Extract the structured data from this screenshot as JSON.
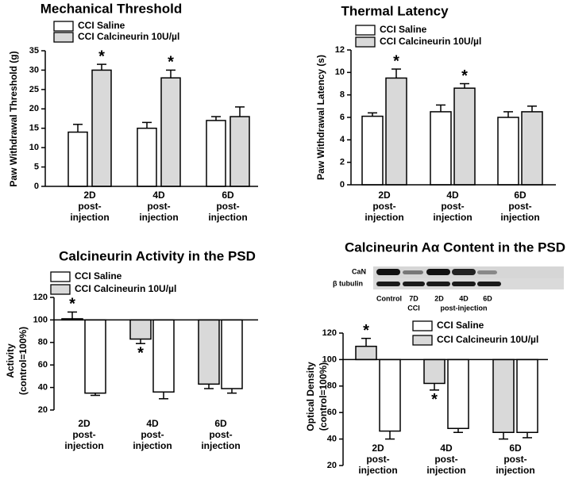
{
  "chart_data": [
    {
      "type": "bar",
      "title": "Mechanical Threshold",
      "y_label": [
        "Paw Withdrawal Threshold (g)"
      ],
      "categories": [
        [
          "2D",
          "post-",
          "injection"
        ],
        [
          "4D",
          "post-",
          "injection"
        ],
        [
          "6D",
          "post-",
          "injection"
        ]
      ],
      "series": [
        {
          "name": "CCI Saline",
          "color": "#ffffff",
          "values": [
            14,
            15,
            17
          ],
          "errors": [
            2,
            1.5,
            1
          ],
          "marked": [
            false,
            false,
            false
          ]
        },
        {
          "name": "CCI Calcineurin 10U/µl",
          "color": "#d9d9d9",
          "values": [
            30,
            28,
            18
          ],
          "errors": [
            1.5,
            2,
            2.5
          ],
          "marked": [
            true,
            true,
            false
          ]
        }
      ],
      "annotation": "*",
      "ylim": [
        0,
        35
      ],
      "yticks": [
        0,
        5,
        10,
        15,
        20,
        25,
        30,
        35
      ],
      "grid": false
    },
    {
      "type": "bar",
      "title": "Thermal Latency",
      "y_label": [
        "Paw Withdrawal Latency (s)"
      ],
      "categories": [
        [
          "2D",
          "post-",
          "injection"
        ],
        [
          "4D",
          "post-",
          "injection"
        ],
        [
          "6D",
          "post-",
          "injection"
        ]
      ],
      "series": [
        {
          "name": "CCI Saline",
          "color": "#ffffff",
          "values": [
            6.1,
            6.5,
            6.0
          ],
          "errors": [
            0.3,
            0.6,
            0.5
          ],
          "marked": [
            false,
            false,
            false
          ]
        },
        {
          "name": "CCI Calcineurin 10U/µl",
          "color": "#d9d9d9",
          "values": [
            9.5,
            8.6,
            6.5
          ],
          "errors": [
            0.8,
            0.4,
            0.5
          ],
          "marked": [
            true,
            true,
            false
          ]
        }
      ],
      "annotation": "*",
      "ylim": [
        0,
        12
      ],
      "yticks": [
        0,
        2,
        4,
        6,
        8,
        10,
        12
      ],
      "grid": false
    },
    {
      "type": "bar",
      "title": "Calcineurin Activity in the PSD",
      "y_label": [
        "Activity",
        "(control=100%)"
      ],
      "categories": [
        [
          "2D",
          "post-",
          "injection"
        ],
        [
          "4D",
          "post-",
          "injection"
        ],
        [
          "6D",
          "post-",
          "injection"
        ]
      ],
      "legend": [
        {
          "name": "CCI Saline",
          "color": "#ffffff"
        },
        {
          "name": "CCI Calcineurin 10U/µl",
          "color": "#d9d9d9"
        }
      ],
      "series": [
        {
          "colors": [
            "#ffffff",
            "#d9d9d9",
            "#d9d9d9"
          ],
          "values": [
            101,
            83,
            43
          ],
          "errors": [
            6,
            4,
            4
          ],
          "marked": [
            true,
            true,
            false
          ]
        },
        {
          "colors": [
            "#ffffff",
            "#ffffff",
            "#ffffff"
          ],
          "values": [
            35,
            36,
            39
          ],
          "errors": [
            2,
            6,
            4
          ],
          "marked": [
            false,
            false,
            false
          ]
        }
      ],
      "annotation": "*",
      "baseline": 100,
      "ylim": [
        20,
        120
      ],
      "yticks": [
        20,
        40,
        60,
        80,
        100,
        120
      ],
      "grid": false
    },
    {
      "type": "bar",
      "title": "Calcineurin Aα Content in the PSD",
      "y_label": [
        "Optical Density",
        "(control=100%)"
      ],
      "categories": [
        [
          "2D",
          "post-",
          "injection"
        ],
        [
          "4D",
          "post-",
          "injection"
        ],
        [
          "6D",
          "post-",
          "injection"
        ]
      ],
      "legend": [
        {
          "name": "CCI Saline",
          "color": "#ffffff"
        },
        {
          "name": "CCI Calcineurin 10U/µl",
          "color": "#d9d9d9"
        }
      ],
      "series": [
        {
          "colors": [
            "#d9d9d9",
            "#d9d9d9",
            "#d9d9d9"
          ],
          "values": [
            110,
            82,
            45
          ],
          "errors": [
            6,
            5,
            5
          ],
          "marked": [
            true,
            true,
            false
          ]
        },
        {
          "colors": [
            "#ffffff",
            "#ffffff",
            "#ffffff"
          ],
          "values": [
            46,
            48,
            45
          ],
          "errors": [
            6,
            3,
            4
          ],
          "marked": [
            false,
            false,
            false
          ]
        }
      ],
      "annotation": "*",
      "baseline": 100,
      "ylim": [
        20,
        120
      ],
      "yticks": [
        20,
        40,
        60,
        80,
        100,
        120
      ],
      "grid": false,
      "inset": {
        "rows": [
          "CaN",
          "β tubulin"
        ],
        "lanes": [
          "Control",
          "7D",
          "2D",
          "4D",
          "6D"
        ],
        "groups": [
          "CCI",
          "post-injection"
        ]
      }
    }
  ]
}
